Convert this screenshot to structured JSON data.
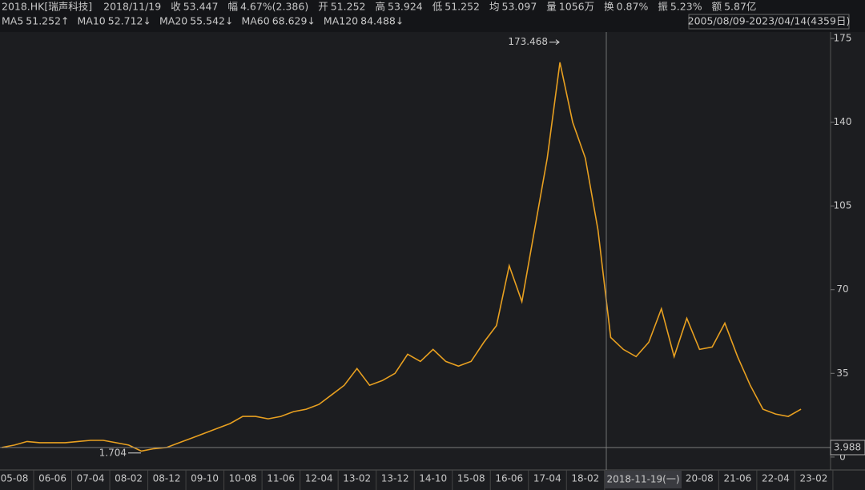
{
  "chart_data": {
    "type": "line",
    "info": [
      {
        "label": "2018.HK[瑞声科技]",
        "value": "2018/11/19"
      },
      {
        "label": "收",
        "value": "53.447"
      },
      {
        "label": "幅",
        "value": "4.67%(2.386)"
      },
      {
        "label": "开",
        "value": "51.252"
      },
      {
        "label": "高",
        "value": "53.924"
      },
      {
        "label": "低",
        "value": "51.252"
      },
      {
        "label": "均",
        "value": "53.097"
      },
      {
        "label": "量",
        "value": "1056万"
      },
      {
        "label": "换",
        "value": "0.87%"
      },
      {
        "label": "振",
        "value": "5.23%"
      },
      {
        "label": "额",
        "value": "5.87亿"
      }
    ],
    "ma": [
      {
        "name": "MA5",
        "value": "51.252↑",
        "color": "#f0a020"
      },
      {
        "name": "MA10",
        "value": "52.712↓",
        "color": "#e8e000"
      },
      {
        "name": "MA20",
        "value": "55.542↓",
        "color": "#e040e0"
      },
      {
        "name": "MA60",
        "value": "68.629↓",
        "color": "#20c040"
      },
      {
        "name": "MA120",
        "value": "84.488↓",
        "color": "#40c8d8"
      }
    ],
    "range": "2005/08/09-2023/04/14(4359日)",
    "categories": [
      null,
      "05-08",
      null,
      null,
      "06-06",
      null,
      null,
      "07-04",
      null,
      null,
      "08-02",
      null,
      null,
      "08-12",
      null,
      null,
      "09-10",
      null,
      null,
      "10-08",
      null,
      null,
      "11-06",
      null,
      null,
      "12-04",
      null,
      null,
      "13-02",
      null,
      null,
      "13-12",
      null,
      null,
      "14-10",
      null,
      null,
      "15-08",
      null,
      null,
      "16-06",
      null,
      null,
      "17-04",
      null,
      null,
      "18-02",
      null,
      null,
      null,
      null,
      null,
      null,
      null,
      null,
      "20-08",
      null,
      null,
      "21-06",
      null,
      null,
      "22-04",
      null,
      null,
      "23-02"
    ],
    "values": [
      4,
      5,
      6.5,
      6,
      6,
      6,
      6.5,
      7,
      7,
      6,
      5,
      2.5,
      3.5,
      4,
      6,
      8,
      10,
      12,
      14,
      17,
      17,
      16,
      17,
      19,
      20,
      22,
      26,
      30,
      37,
      30,
      32,
      35,
      43,
      40,
      45,
      40,
      38,
      40,
      48,
      55,
      80,
      65,
      95,
      125,
      165,
      140,
      125,
      95,
      50,
      45,
      42,
      48,
      62,
      42,
      58,
      45,
      46,
      56,
      42,
      30,
      20,
      18,
      17,
      20,
      null
    ],
    "color": "#e8a020",
    "ylim": [
      -5.4,
      177.7
    ],
    "yticks": [
      0,
      35,
      70,
      105,
      140,
      175
    ],
    "high_label": 173.468,
    "low_label": 1.704,
    "cursor_price": 3.988,
    "cursor_date": "2018-11-19(一)"
  }
}
